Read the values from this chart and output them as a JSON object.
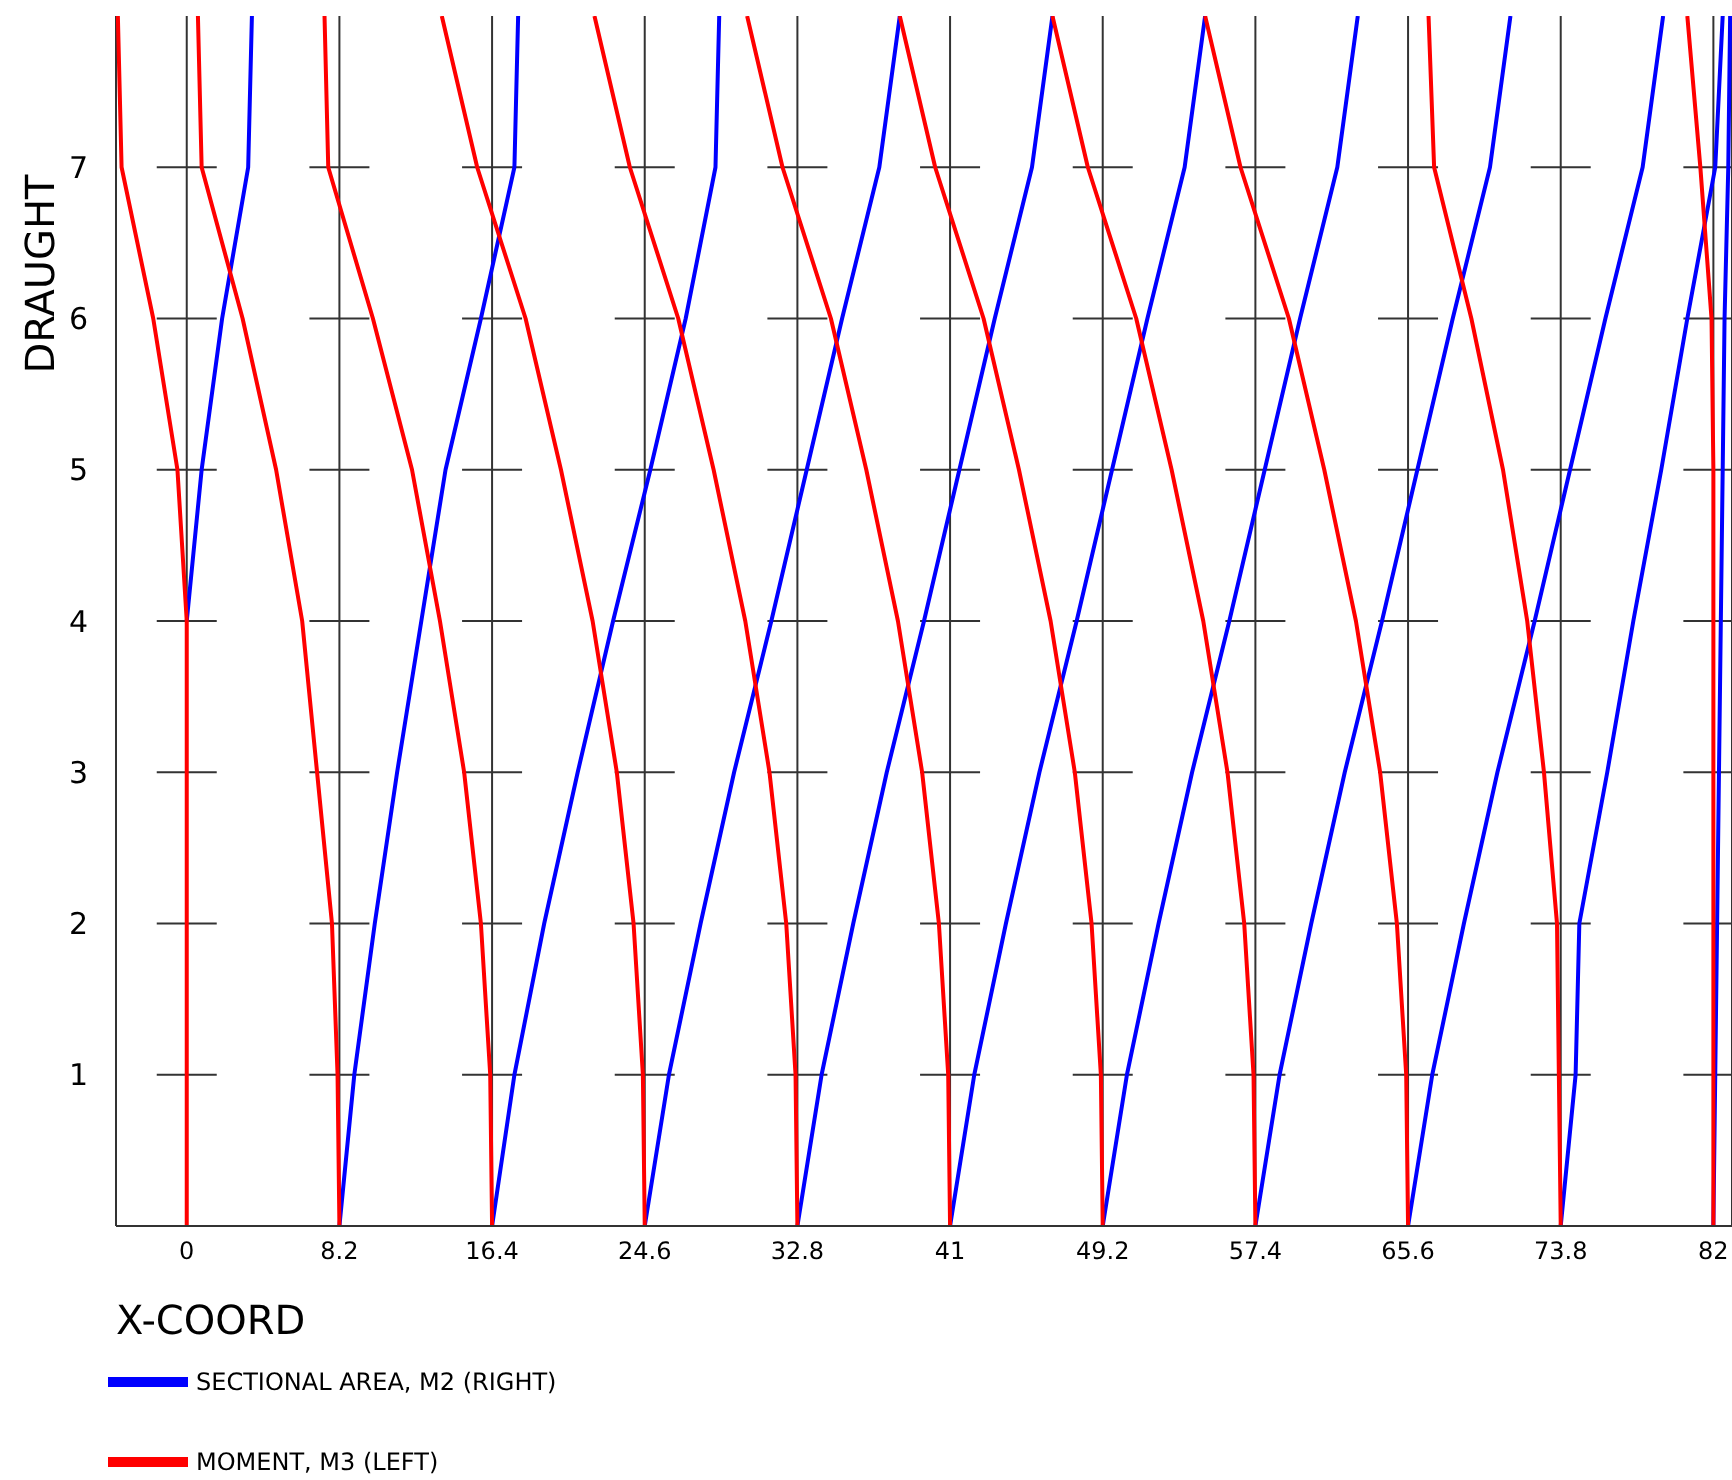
{
  "chart_data": {
    "type": "line",
    "xlabel": "X-COORD",
    "ylabel": "DRAUGHT",
    "xlim": [
      -3.8,
      83
    ],
    "ylim": [
      0,
      8
    ],
    "xticks": [
      0,
      8.2,
      16.4,
      24.6,
      32.8,
      41,
      49.2,
      57.4,
      65.6,
      73.8,
      82
    ],
    "yticks": [
      1,
      2,
      3,
      4,
      5,
      6,
      7
    ],
    "grid": true,
    "legend": "bottom left",
    "series": [
      {
        "name": "SECTIONAL AREA, M2 (RIGHT)",
        "color": "#0000ff",
        "x": [
          0,
          0.8,
          1.9,
          3.3,
          3.5
        ],
        "values": [
          4,
          5,
          6,
          7,
          8
        ]
      },
      {
        "name": "MOMENT, M3 (LEFT)",
        "color": "#ff0000",
        "x": [
          0,
          0,
          0,
          0,
          0,
          -0.5,
          -1.8,
          -3.5,
          -3.7
        ],
        "values": [
          0,
          1,
          2,
          3,
          4,
          5,
          6,
          7,
          8
        ]
      },
      {
        "color": "#0000ff",
        "x": [
          8.2,
          9.0,
          10.1,
          11.3,
          12.6,
          13.9,
          15.8,
          17.6,
          17.8
        ],
        "values": [
          0,
          1,
          2,
          3,
          4,
          5,
          6,
          7,
          8
        ]
      },
      {
        "color": "#ff0000",
        "x": [
          8.2,
          8.1,
          7.8,
          7.0,
          6.2,
          4.8,
          3.0,
          0.8,
          0.6
        ],
        "values": [
          0,
          1,
          2,
          3,
          4,
          5,
          6,
          7,
          8
        ]
      },
      {
        "color": "#0000ff",
        "x": [
          16.4,
          17.6,
          19.2,
          21.0,
          22.9,
          24.9,
          26.8,
          28.4,
          28.6
        ],
        "values": [
          0,
          1,
          2,
          3,
          4,
          5,
          6,
          7,
          8
        ]
      },
      {
        "color": "#ff0000",
        "x": [
          16.4,
          16.3,
          15.8,
          14.9,
          13.6,
          12.1,
          10.0,
          7.6,
          7.4
        ],
        "values": [
          0,
          1,
          2,
          3,
          4,
          5,
          6,
          7,
          8
        ]
      },
      {
        "color": "#0000ff",
        "x": [
          24.6,
          25.9,
          27.6,
          29.4,
          31.4,
          33.3,
          35.2,
          37.2,
          38.3
        ],
        "values": [
          0,
          1,
          2,
          3,
          4,
          5,
          6,
          7,
          8
        ]
      },
      {
        "color": "#ff0000",
        "x": [
          24.6,
          24.5,
          24.0,
          23.1,
          21.8,
          20.1,
          18.2,
          15.6,
          13.7
        ],
        "values": [
          0,
          1,
          2,
          3,
          4,
          5,
          6,
          7,
          8
        ]
      },
      {
        "color": "#0000ff",
        "x": [
          32.8,
          34.1,
          35.8,
          37.6,
          39.6,
          41.5,
          43.4,
          45.4,
          46.5
        ],
        "values": [
          0,
          1,
          2,
          3,
          4,
          5,
          6,
          7,
          8
        ]
      },
      {
        "color": "#ff0000",
        "x": [
          32.8,
          32.7,
          32.2,
          31.3,
          30.0,
          28.3,
          26.4,
          23.8,
          21.9
        ],
        "values": [
          0,
          1,
          2,
          3,
          4,
          5,
          6,
          7,
          8
        ]
      },
      {
        "color": "#0000ff",
        "x": [
          41,
          42.3,
          44,
          45.8,
          47.8,
          49.7,
          51.6,
          53.6,
          54.7
        ],
        "values": [
          0,
          1,
          2,
          3,
          4,
          5,
          6,
          7,
          8
        ]
      },
      {
        "color": "#ff0000",
        "x": [
          41,
          40.9,
          40.4,
          39.5,
          38.2,
          36.5,
          34.6,
          32,
          30.1
        ],
        "values": [
          0,
          1,
          2,
          3,
          4,
          5,
          6,
          7,
          8
        ]
      },
      {
        "color": "#0000ff",
        "x": [
          49.2,
          50.5,
          52.2,
          54,
          56,
          57.9,
          59.8,
          61.8,
          62.9
        ],
        "values": [
          0,
          1,
          2,
          3,
          4,
          5,
          6,
          7,
          8
        ]
      },
      {
        "color": "#ff0000",
        "x": [
          49.2,
          49.1,
          48.6,
          47.7,
          46.4,
          44.7,
          42.8,
          40.2,
          38.3
        ],
        "values": [
          0,
          1,
          2,
          3,
          4,
          5,
          6,
          7,
          8
        ]
      },
      {
        "color": "#0000ff",
        "x": [
          57.4,
          58.7,
          60.4,
          62.2,
          64.2,
          66.1,
          68,
          70,
          71.1
        ],
        "values": [
          0,
          1,
          2,
          3,
          4,
          5,
          6,
          7,
          8
        ]
      },
      {
        "color": "#ff0000",
        "x": [
          57.4,
          57.3,
          56.8,
          55.9,
          54.6,
          52.9,
          51,
          48.4,
          46.5
        ],
        "values": [
          0,
          1,
          2,
          3,
          4,
          5,
          6,
          7,
          8
        ]
      },
      {
        "color": "#0000ff",
        "x": [
          65.6,
          66.9,
          68.6,
          70.4,
          72.4,
          74.3,
          76.2,
          78.2,
          79.3
        ],
        "values": [
          0,
          1,
          2,
          3,
          4,
          5,
          6,
          7,
          8
        ]
      },
      {
        "color": "#ff0000",
        "x": [
          65.6,
          65.5,
          65,
          64.1,
          62.8,
          61.1,
          59.2,
          56.6,
          54.7
        ],
        "values": [
          0,
          1,
          2,
          3,
          4,
          5,
          6,
          7,
          8
        ]
      },
      {
        "color": "#0000ff",
        "x": [
          73.8,
          74.6,
          74.8,
          76.3,
          77.7,
          79.2,
          80.6,
          82.1,
          82.5
        ],
        "values": [
          0,
          1,
          2,
          3,
          4,
          5,
          6,
          7,
          8
        ]
      },
      {
        "color": "#ff0000",
        "x": [
          73.8,
          73.7,
          73.6,
          72.9,
          72.0,
          70.7,
          69.0,
          67.0,
          66.7
        ],
        "values": [
          0,
          1,
          2,
          3,
          4,
          5,
          6,
          7,
          8
        ]
      },
      {
        "color": "#0000ff",
        "x": [
          82,
          82.1,
          82.2,
          82.3,
          82.4,
          82.5,
          82.6,
          82.8,
          82.9
        ],
        "values": [
          0,
          1,
          2,
          3,
          4,
          5,
          6,
          7,
          8
        ]
      },
      {
        "color": "#ff0000",
        "x": [
          82,
          82,
          82,
          82,
          82,
          82,
          81.9,
          81.3,
          80.6
        ],
        "values": [
          0,
          1,
          2,
          3,
          4,
          5,
          6,
          7,
          8
        ]
      }
    ]
  }
}
